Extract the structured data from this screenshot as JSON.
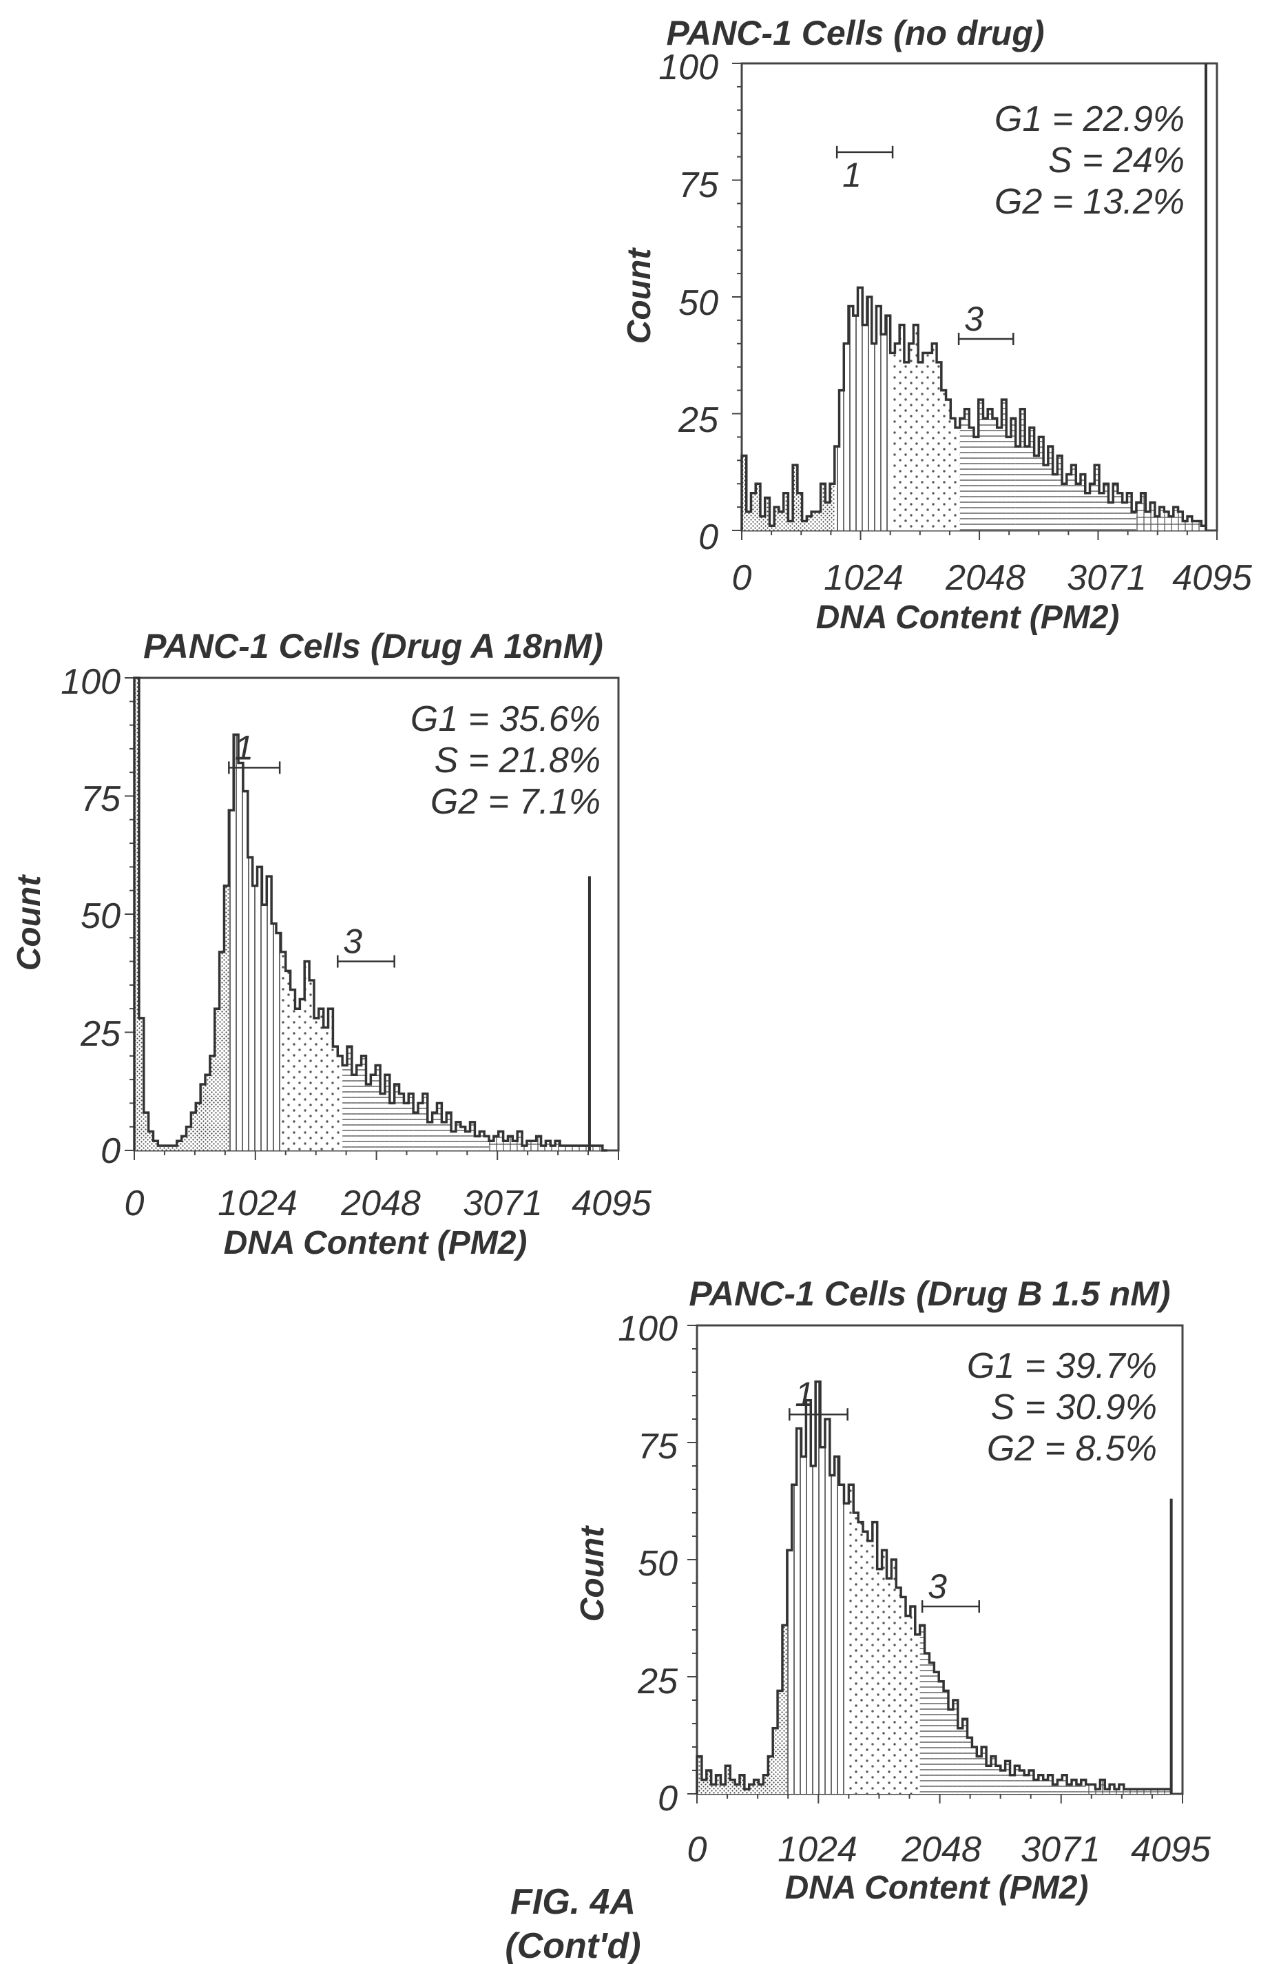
{
  "figure": {
    "caption_line1": "FIG. 4A",
    "caption_line2": "(Cont'd)"
  },
  "chart_data": [
    {
      "type": "histogram",
      "title": "PANC-1 Cells (no drug)",
      "xlabel": "DNA Content (PM2)",
      "ylabel": "Count",
      "xlim": [
        0,
        4095
      ],
      "ylim": [
        0,
        100
      ],
      "xticks": [
        "0",
        "1024",
        "2048",
        "3071",
        "4095"
      ],
      "yticks": [
        "0",
        "25",
        "50",
        "75",
        "100"
      ],
      "stats": [
        "G1 = 22.9%",
        "S = 24%",
        "G2 = 13.2%"
      ],
      "markers": [
        {
          "label": "1",
          "x_start": 820,
          "x_end": 1300,
          "y": 81
        },
        {
          "label": "3",
          "x_start": 1870,
          "x_end": 2340,
          "y": 41
        }
      ],
      "regions": {
        "g1": [
          820,
          1300
        ],
        "s": [
          1300,
          1870
        ],
        "g2": [
          1870,
          3400
        ]
      },
      "max_line": {
        "x": 4000,
        "y": 100
      },
      "bins": {
        "x": [
          0,
          40,
          80,
          120,
          160,
          200,
          240,
          280,
          320,
          360,
          400,
          440,
          480,
          520,
          560,
          600,
          640,
          680,
          720,
          760,
          800,
          840,
          880,
          920,
          960,
          1000,
          1040,
          1080,
          1120,
          1160,
          1200,
          1240,
          1280,
          1320,
          1360,
          1400,
          1440,
          1480,
          1520,
          1560,
          1600,
          1640,
          1680,
          1720,
          1760,
          1800,
          1840,
          1880,
          1920,
          1960,
          2000,
          2040,
          2080,
          2120,
          2160,
          2200,
          2240,
          2280,
          2320,
          2360,
          2400,
          2440,
          2480,
          2520,
          2560,
          2600,
          2640,
          2680,
          2720,
          2760,
          2800,
          2840,
          2880,
          2920,
          2960,
          3000,
          3040,
          3080,
          3120,
          3160,
          3200,
          3240,
          3280,
          3320,
          3360,
          3400,
          3440,
          3480,
          3520,
          3560,
          3600,
          3640,
          3680,
          3720,
          3760,
          3800,
          3840,
          3880,
          3920,
          3960
        ],
        "counts": [
          16,
          4,
          8,
          10,
          3,
          7,
          1,
          5,
          4,
          8,
          2,
          14,
          8,
          2,
          3,
          4,
          4,
          10,
          6,
          10,
          18,
          30,
          40,
          48,
          46,
          52,
          44,
          50,
          40,
          48,
          42,
          46,
          38,
          40,
          44,
          36,
          40,
          44,
          36,
          38,
          38,
          40,
          36,
          30,
          28,
          24,
          22,
          24,
          26,
          22,
          20,
          28,
          24,
          26,
          24,
          22,
          28,
          20,
          24,
          18,
          26,
          18,
          22,
          16,
          20,
          14,
          18,
          12,
          16,
          10,
          12,
          14,
          10,
          12,
          8,
          10,
          14,
          8,
          10,
          6,
          10,
          8,
          6,
          8,
          4,
          6,
          8,
          4,
          6,
          3,
          5,
          4,
          3,
          5,
          4,
          2,
          3,
          2,
          2,
          1
        ]
      }
    },
    {
      "type": "histogram",
      "title": "PANC-1 Cells (Drug A 18nM)",
      "xlabel": "DNA Content (PM2)",
      "ylabel": "Count",
      "xlim": [
        0,
        4095
      ],
      "ylim": [
        0,
        100
      ],
      "xticks": [
        "0",
        "1024",
        "2048",
        "3071",
        "4095"
      ],
      "yticks": [
        "0",
        "25",
        "50",
        "75",
        "100"
      ],
      "stats": [
        "G1 = 35.6%",
        "S = 21.8%",
        "G2 = 7.1%"
      ],
      "markers": [
        {
          "label": "1",
          "x_start": 800,
          "x_end": 1230,
          "y": 81
        },
        {
          "label": "3",
          "x_start": 1720,
          "x_end": 2200,
          "y": 40
        }
      ],
      "regions": {
        "g1": [
          800,
          1230
        ],
        "s": [
          1230,
          1780
        ],
        "g2": [
          1780,
          3000
        ]
      },
      "max_line": {
        "x": 3850,
        "y": 58
      },
      "bins": {
        "x": [
          0,
          40,
          80,
          120,
          160,
          200,
          240,
          280,
          320,
          360,
          400,
          440,
          480,
          520,
          560,
          600,
          640,
          680,
          720,
          760,
          800,
          840,
          880,
          920,
          960,
          1000,
          1040,
          1080,
          1120,
          1160,
          1200,
          1240,
          1280,
          1320,
          1360,
          1400,
          1440,
          1480,
          1520,
          1560,
          1600,
          1640,
          1680,
          1720,
          1760,
          1800,
          1840,
          1880,
          1920,
          1960,
          2000,
          2040,
          2080,
          2120,
          2160,
          2200,
          2240,
          2280,
          2320,
          2360,
          2400,
          2440,
          2480,
          2520,
          2560,
          2600,
          2640,
          2680,
          2720,
          2760,
          2800,
          2840,
          2880,
          2920,
          2960,
          3000,
          3040,
          3080,
          3120,
          3160,
          3200,
          3240,
          3280,
          3320,
          3360,
          3400,
          3440,
          3480,
          3520,
          3560,
          3600,
          3640,
          3680,
          3720,
          3760,
          3800,
          3840,
          3880,
          3920,
          3960
        ],
        "counts": [
          100,
          28,
          8,
          4,
          2,
          1,
          1,
          1,
          1,
          2,
          3,
          5,
          8,
          10,
          14,
          16,
          20,
          30,
          42,
          56,
          72,
          88,
          82,
          76,
          62,
          56,
          60,
          52,
          58,
          48,
          46,
          42,
          38,
          34,
          30,
          32,
          40,
          36,
          28,
          30,
          26,
          30,
          22,
          20,
          18,
          22,
          16,
          18,
          20,
          14,
          16,
          18,
          12,
          16,
          10,
          14,
          12,
          10,
          12,
          8,
          10,
          12,
          6,
          8,
          10,
          6,
          8,
          4,
          6,
          5,
          4,
          6,
          3,
          4,
          3,
          2,
          3,
          4,
          2,
          3,
          2,
          4,
          1,
          2,
          2,
          3,
          1,
          2,
          1,
          2,
          1,
          1,
          1,
          1,
          1,
          1,
          1,
          1,
          1,
          0
        ]
      }
    },
    {
      "type": "histogram",
      "title": "PANC-1 Cells (Drug B 1.5 nM)",
      "xlabel": "DNA Content (PM2)",
      "ylabel": "Count",
      "xlim": [
        0,
        4095
      ],
      "ylim": [
        0,
        100
      ],
      "xticks": [
        "0",
        "1024",
        "2048",
        "3071",
        "4095"
      ],
      "yticks": [
        "0",
        "25",
        "50",
        "75",
        "100"
      ],
      "stats": [
        "G1 = 39.7%",
        "S = 30.9%",
        "G2 = 8.5%"
      ],
      "markers": [
        {
          "label": "1",
          "x_start": 780,
          "x_end": 1270,
          "y": 81
        },
        {
          "label": "3",
          "x_start": 1900,
          "x_end": 2380,
          "y": 40
        }
      ],
      "regions": {
        "g1": [
          780,
          1300
        ],
        "s": [
          1300,
          1900
        ],
        "g2": [
          1900,
          3300
        ]
      },
      "max_line": {
        "x": 4000,
        "y": 63
      },
      "bins": {
        "x": [
          0,
          40,
          80,
          120,
          160,
          200,
          240,
          280,
          320,
          360,
          400,
          440,
          480,
          520,
          560,
          600,
          640,
          680,
          720,
          760,
          800,
          840,
          880,
          920,
          960,
          1000,
          1040,
          1080,
          1120,
          1160,
          1200,
          1240,
          1280,
          1320,
          1360,
          1400,
          1440,
          1480,
          1520,
          1560,
          1600,
          1640,
          1680,
          1720,
          1760,
          1800,
          1840,
          1880,
          1920,
          1960,
          2000,
          2040,
          2080,
          2120,
          2160,
          2200,
          2240,
          2280,
          2320,
          2360,
          2400,
          2440,
          2480,
          2520,
          2560,
          2600,
          2640,
          2680,
          2720,
          2760,
          2800,
          2840,
          2880,
          2920,
          2960,
          3000,
          3040,
          3080,
          3120,
          3160,
          3200,
          3240,
          3280,
          3320,
          3360,
          3400,
          3440,
          3480,
          3520,
          3560,
          3600,
          3640,
          3680,
          3720,
          3760,
          3800,
          3840,
          3880,
          3920,
          3960
        ],
        "counts": [
          8,
          3,
          5,
          2,
          4,
          2,
          6,
          3,
          2,
          4,
          1,
          2,
          3,
          2,
          4,
          8,
          14,
          22,
          36,
          52,
          66,
          78,
          72,
          84,
          70,
          88,
          74,
          80,
          68,
          72,
          66,
          62,
          66,
          60,
          58,
          56,
          54,
          58,
          48,
          52,
          46,
          50,
          44,
          42,
          38,
          40,
          34,
          36,
          30,
          28,
          26,
          24,
          22,
          18,
          20,
          14,
          16,
          12,
          10,
          8,
          10,
          6,
          8,
          6,
          5,
          7,
          4,
          6,
          5,
          4,
          5,
          3,
          4,
          3,
          4,
          2,
          3,
          4,
          2,
          3,
          2,
          3,
          2,
          2,
          1,
          3,
          1,
          2,
          1,
          2,
          1,
          1,
          1,
          1,
          1,
          1,
          1,
          1,
          1,
          1
        ]
      }
    }
  ]
}
